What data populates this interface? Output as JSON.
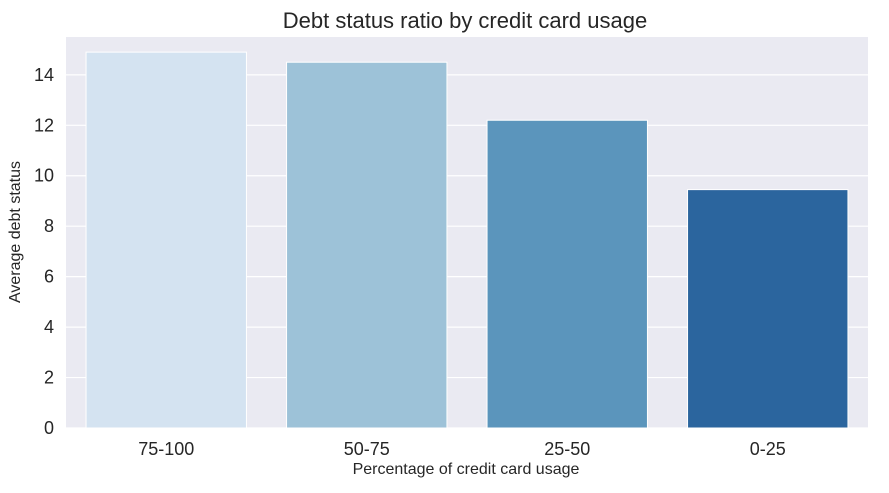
{
  "chart_data": {
    "type": "bar",
    "title": "Debt status ratio by credit card usage",
    "xlabel": "Percentage of credit card usage",
    "ylabel": "Average debt status",
    "categories": [
      "75-100",
      "50-75",
      "25-50",
      "0-25"
    ],
    "values": [
      14.9,
      14.5,
      12.2,
      9.45
    ],
    "ylim": [
      0,
      15.5
    ],
    "yticks": [
      0,
      2,
      4,
      6,
      8,
      10,
      12,
      14
    ],
    "grid": true,
    "legend": "none",
    "colors": [
      "#d4e3f1",
      "#9dc2d8",
      "#5b95bc",
      "#2b659e"
    ],
    "plot_background": "#eaeaf2",
    "gridline_color": "#ffffff"
  }
}
